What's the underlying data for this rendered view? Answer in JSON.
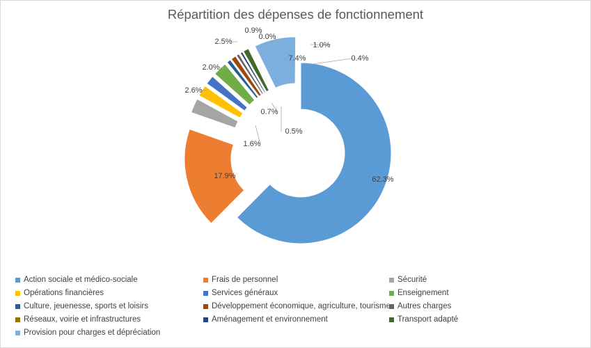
{
  "chart_data": {
    "type": "pie",
    "variant": "exploded-doughnut",
    "title": "Répartition des dépenses de fonctionnement",
    "legend_position": "bottom",
    "categories": [
      "Action sociale et médico-sociale",
      "Frais de personnel",
      "Sécurité",
      "Opérations financières",
      "Services généraux",
      "Enseignement",
      "Culture, jeuenesse, sports et loisirs",
      "Développement économique, agriculture, tourisme",
      "Autres charges",
      "Réseaux, voirie et infrastructures",
      "Aménagement et environnement",
      "Transport adapté",
      "Provision pour charges et dépréciation"
    ],
    "values": [
      62.3,
      17.9,
      2.6,
      2.0,
      1.6,
      2.5,
      0.7,
      0.9,
      0.5,
      0.0,
      0.4,
      1.0,
      7.4
    ],
    "labels": [
      "62.3%",
      "17.9%",
      "2.6%",
      "2.0%",
      "1.6%",
      "2.5%",
      "0.7%",
      "0.9%",
      "0.5%",
      "0.0%",
      "0.4%",
      "1.0%",
      "7.4%"
    ],
    "colors": [
      "#5b9bd5",
      "#ed7d31",
      "#a5a5a5",
      "#ffc000",
      "#4472c4",
      "#70ad47",
      "#255e91",
      "#9e480e",
      "#636363",
      "#997300",
      "#264478",
      "#43682b",
      "#7cafdd"
    ]
  }
}
